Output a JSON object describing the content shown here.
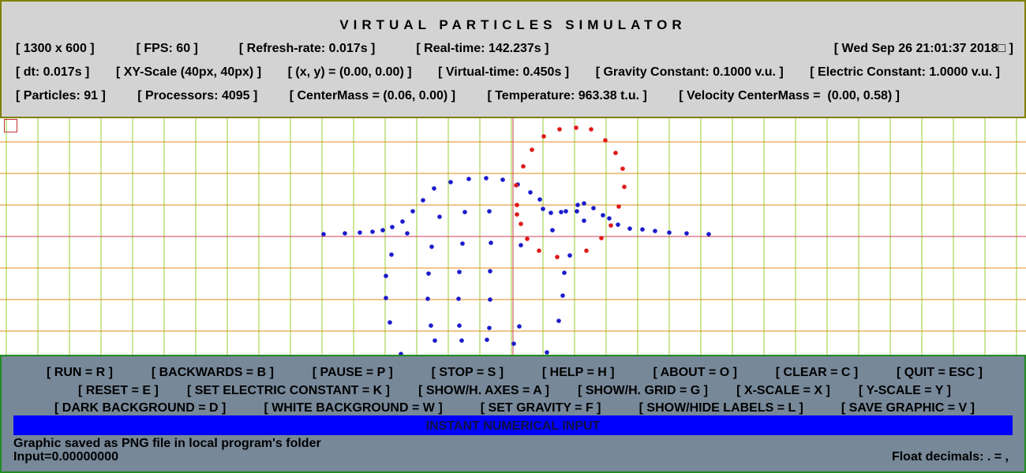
{
  "header": {
    "title": "VIRTUAL PARTICLES SIMULATOR",
    "rows": [
      [
        "[ 1300 x 600 ]",
        "[ FPS: 60 ]",
        "[ Refresh-rate: 0.017s ]",
        "[ Real-time: 142.237s ]",
        "[ Wed Sep 26 21:01:37 2018□ ]"
      ],
      [
        "[ dt: 0.017s ]",
        "[ XY-Scale (40px, 40px) ]",
        "[ (x, y) = (0.00, 0.00) ]",
        "[ Virtual-time: 0.450s ]",
        "[ Gravity Constant: 0.1000 v.u. ]",
        "[ Electric Constant: 1.0000 v.u. ]"
      ],
      [
        "[ Particles: 91 ]",
        "[ Processors: 4095 ]",
        "[ CenterMass = (0.06, 0.00) ]",
        "[ Temperature: 963.38 t.u. ]",
        "[ Velocity CenterMass =  (0.00, 0.58) ]"
      ]
    ]
  },
  "menu": {
    "rows": [
      [
        "[ RUN = R ]",
        "[ BACKWARDS = B ]",
        "[ PAUSE = P ]",
        "[ STOP = S ]",
        "[ HELP = H ]",
        "[ ABOUT = O ]",
        "[ CLEAR = C ]",
        "[ QUIT = ESC ]"
      ],
      [
        "[ RESET = E ]",
        "[ SET ELECTRIC CONSTANT = K ]",
        "[ SHOW/H. AXES = A ]",
        "[ SHOW/H. GRID = G ]",
        "[ X-SCALE = X ]",
        "[ Y-SCALE = Y ]"
      ],
      [
        "[ DARK BACKGROUND = D ]",
        "[ WHITE BACKGROUND = W ]",
        "[ SET GRAVITY = F ]",
        "[ SHOW/HIDE LABELS = L ]",
        "[ SAVE GRAPHIC = V ]"
      ]
    ]
  },
  "input_bar": {
    "label": "INSTANT NUMERICAL INPUT"
  },
  "status": {
    "message": "Graphic saved as PNG file in local program's folder",
    "input": "Input=0.00000000",
    "float_decimals": "Float decimals: . = ,"
  }
}
